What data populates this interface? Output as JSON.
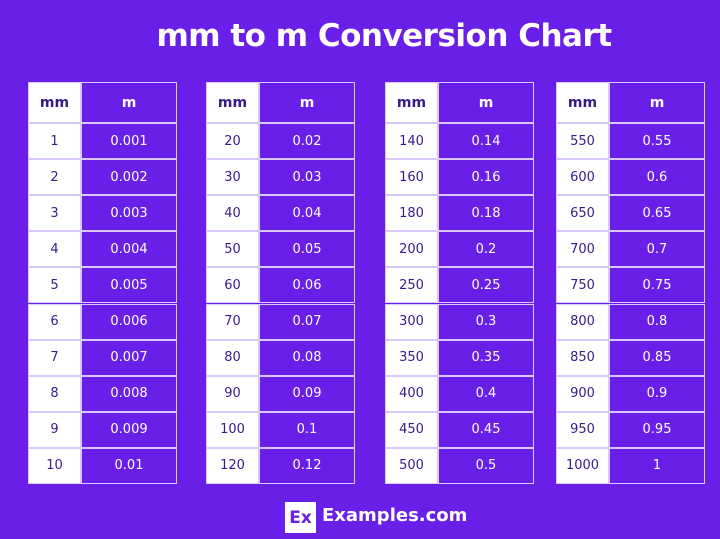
{
  "header": {
    "title": "mm to m Conversion Chart"
  },
  "tables": [
    {
      "header": [
        "mm",
        "m"
      ],
      "rows": [
        [
          "1",
          "0.001"
        ],
        [
          "2",
          "0.002"
        ],
        [
          "3",
          "0.003"
        ],
        [
          "4",
          "0.004"
        ],
        [
          "5",
          "0.005"
        ],
        [
          "6",
          "0.006"
        ],
        [
          "7",
          "0.007"
        ],
        [
          "8",
          "0.008"
        ],
        [
          "9",
          "0.009"
        ],
        [
          "10",
          "0.01"
        ]
      ]
    },
    {
      "header": [
        "mm",
        "m"
      ],
      "rows": [
        [
          "20",
          "0.02"
        ],
        [
          "30",
          "0.03"
        ],
        [
          "40",
          "0.04"
        ],
        [
          "50",
          "0.05"
        ],
        [
          "60",
          "0.06"
        ],
        [
          "70",
          "0.07"
        ],
        [
          "80",
          "0.08"
        ],
        [
          "90",
          "0.09"
        ],
        [
          "100",
          "0.1"
        ],
        [
          "120",
          "0.12"
        ]
      ]
    },
    {
      "header": [
        "mm",
        "m"
      ],
      "rows": [
        [
          "140",
          "0.14"
        ],
        [
          "160",
          "0.16"
        ],
        [
          "180",
          "0.18"
        ],
        [
          "200",
          "0.2"
        ],
        [
          "250",
          "0.25"
        ],
        [
          "300",
          "0.3"
        ],
        [
          "350",
          "0.35"
        ],
        [
          "400",
          "0.4"
        ],
        [
          "450",
          "0.45"
        ],
        [
          "500",
          "0.5"
        ]
      ]
    },
    {
      "header": [
        "mm",
        "m"
      ],
      "rows": [
        [
          "550",
          "0.55"
        ],
        [
          "600",
          "0.6"
        ],
        [
          "650",
          "0.65"
        ],
        [
          "700",
          "0.7"
        ],
        [
          "750",
          "0.75"
        ],
        [
          "800",
          "0.8"
        ],
        [
          "850",
          "0.85"
        ],
        [
          "900",
          "0.9"
        ],
        [
          "950",
          "0.95"
        ],
        [
          "1000",
          "1"
        ]
      ]
    }
  ],
  "footer": {
    "logo": "Ex",
    "brand": "Examples.com"
  }
}
